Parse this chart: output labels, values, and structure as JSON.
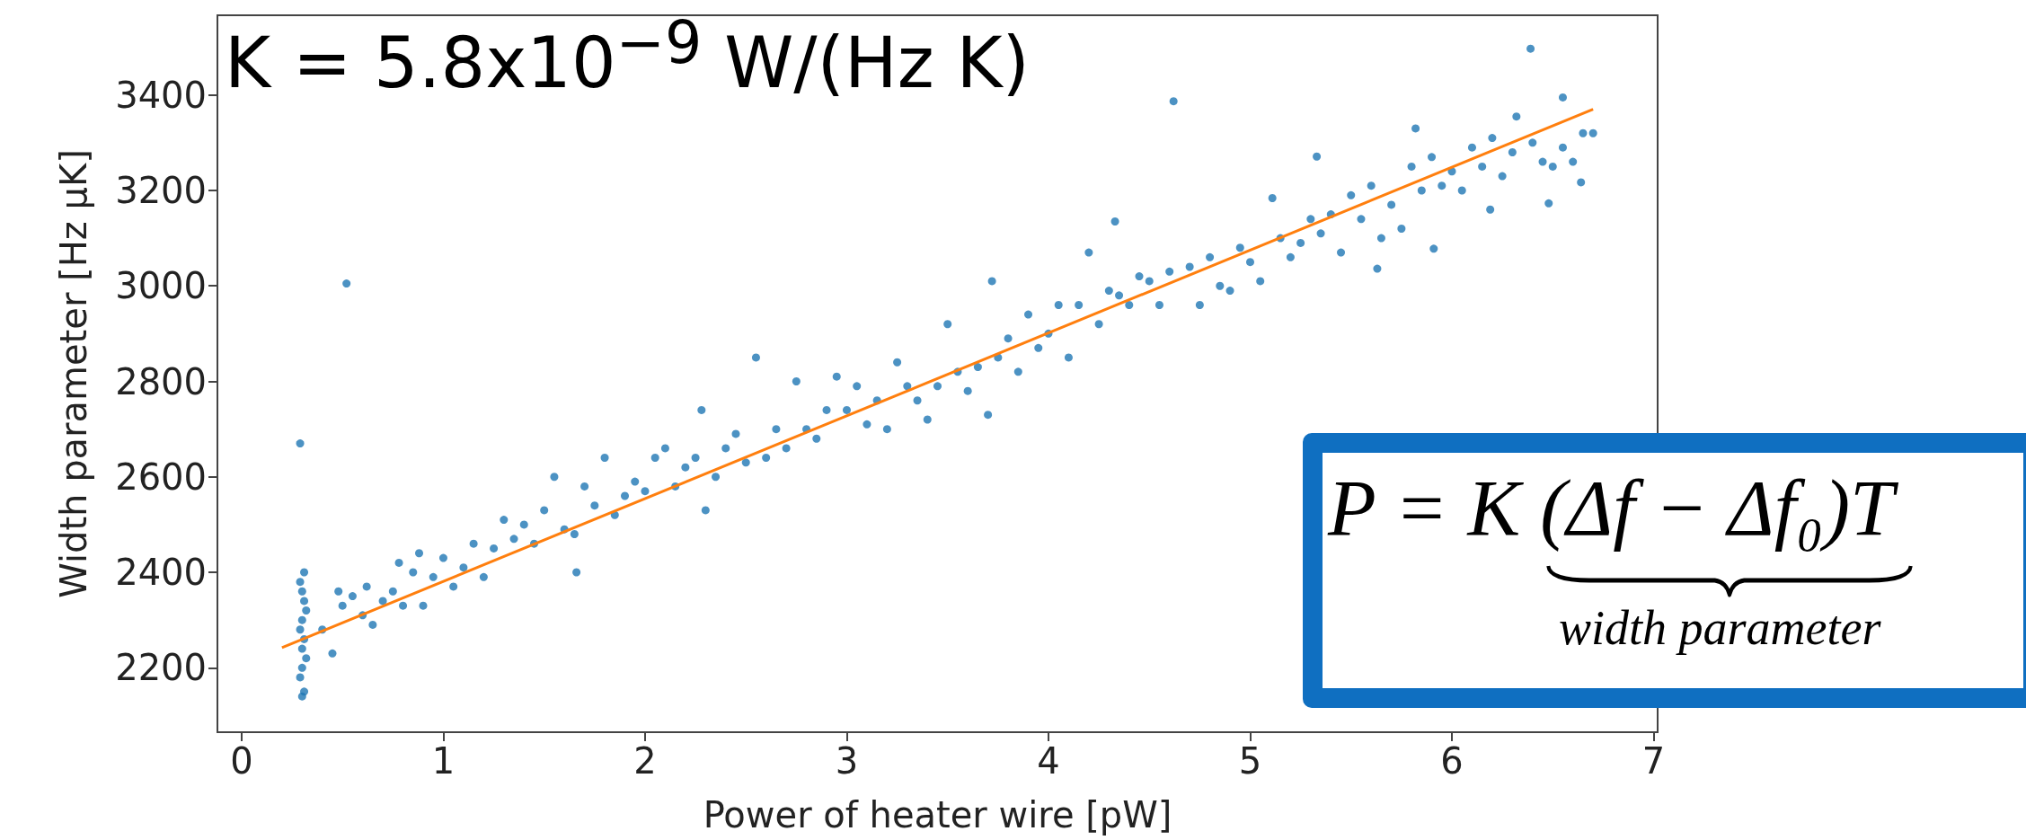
{
  "chart_data": {
    "type": "scatter",
    "xlabel": "Power of heater wire [pW]",
    "ylabel": "Width parameter [Hz μK]",
    "annotations": [
      "K = 5.8x10$^{−9}$ W/(Hz K)",
      "P = K (Δf − Δf₀)T",
      "width parameter"
    ],
    "xlim": [
      -0.12,
      7.02
    ],
    "xticks": [
      0,
      1,
      2,
      3,
      4,
      5,
      6,
      7
    ],
    "ylim": [
      2065,
      3567
    ],
    "yticks": [
      2200,
      2400,
      2600,
      2800,
      3000,
      3200,
      3400
    ],
    "grid": false,
    "marker": "circle",
    "series": [
      {
        "color": "#1f77b4",
        "x": [
          0.3,
          0.31,
          0.29,
          0.3,
          0.32,
          0.3,
          0.31,
          0.29,
          0.3,
          0.32,
          0.31,
          0.3,
          0.29,
          0.31,
          0.29,
          0.52,
          0.4,
          0.45,
          0.48,
          0.5,
          0.55,
          0.6,
          0.62,
          0.65,
          0.7,
          0.75,
          0.78,
          0.8,
          0.85,
          0.88,
          0.9,
          0.95,
          1.0,
          1.05,
          1.1,
          1.15,
          1.2,
          1.25,
          1.3,
          1.35,
          1.4,
          1.45,
          1.5,
          1.55,
          1.6,
          1.65,
          1.66,
          1.7,
          1.75,
          1.8,
          1.85,
          1.9,
          1.95,
          2.0,
          2.05,
          2.1,
          2.15,
          2.2,
          2.25,
          2.28,
          2.3,
          2.35,
          2.4,
          2.45,
          2.5,
          2.55,
          2.6,
          2.65,
          2.7,
          2.75,
          2.8,
          2.85,
          2.9,
          2.95,
          3.0,
          3.05,
          3.1,
          3.15,
          3.2,
          3.25,
          3.3,
          3.35,
          3.4,
          3.45,
          3.5,
          3.55,
          3.6,
          3.65,
          3.7,
          3.72,
          3.75,
          3.8,
          3.85,
          3.9,
          3.95,
          4.0,
          4.05,
          4.1,
          4.15,
          4.2,
          4.25,
          4.3,
          4.33,
          4.35,
          4.4,
          4.45,
          4.5,
          4.55,
          4.6,
          4.62,
          4.7,
          4.75,
          4.8,
          4.85,
          4.9,
          4.95,
          5.0,
          5.05,
          5.11,
          5.15,
          5.2,
          5.25,
          5.3,
          5.33,
          5.35,
          5.4,
          5.45,
          5.5,
          5.55,
          5.6,
          5.63,
          5.65,
          5.7,
          5.75,
          5.8,
          5.82,
          5.85,
          5.9,
          5.91,
          5.95,
          6.0,
          6.05,
          6.1,
          6.15,
          6.19,
          6.2,
          6.25,
          6.3,
          6.32,
          6.39,
          6.4,
          6.45,
          6.48,
          6.5,
          6.55,
          6.55,
          6.6,
          6.64,
          6.65,
          6.7
        ],
        "values": [
          2140,
          2150,
          2180,
          2200,
          2220,
          2240,
          2260,
          2280,
          2300,
          2320,
          2340,
          2360,
          2380,
          2400,
          2670,
          3005,
          2280,
          2230,
          2360,
          2330,
          2350,
          2310,
          2370,
          2290,
          2340,
          2360,
          2420,
          2330,
          2400,
          2440,
          2330,
          2390,
          2430,
          2370,
          2410,
          2460,
          2390,
          2450,
          2510,
          2470,
          2500,
          2460,
          2530,
          2600,
          2490,
          2480,
          2400,
          2580,
          2540,
          2640,
          2520,
          2560,
          2590,
          2570,
          2640,
          2660,
          2580,
          2620,
          2640,
          2740,
          2530,
          2600,
          2660,
          2690,
          2630,
          2850,
          2640,
          2700,
          2660,
          2800,
          2700,
          2680,
          2740,
          2810,
          2740,
          2790,
          2710,
          2760,
          2700,
          2840,
          2790,
          2760,
          2720,
          2790,
          2920,
          2820,
          2780,
          2830,
          2730,
          3010,
          2850,
          2890,
          2820,
          2940,
          2870,
          2900,
          2960,
          2850,
          2960,
          3070,
          2920,
          2990,
          3135,
          2980,
          2960,
          3020,
          3010,
          2960,
          3030,
          3387,
          3040,
          2960,
          3060,
          3000,
          2990,
          3080,
          3050,
          3010,
          3184,
          3100,
          3060,
          3090,
          3140,
          3271,
          3110,
          3150,
          3070,
          3190,
          3140,
          3210,
          3036,
          3100,
          3170,
          3120,
          3250,
          3330,
          3200,
          3270,
          3078,
          3210,
          3240,
          3200,
          3290,
          3250,
          3160,
          3310,
          3230,
          3280,
          3355,
          3497,
          3300,
          3260,
          3173,
          3250,
          3290,
          3395,
          3260,
          3217,
          3320,
          3320
        ]
      },
      {
        "type": "line",
        "color": "#ff7f0e",
        "marker": "none",
        "line_style": "solid",
        "x": [
          0.2,
          6.7
        ],
        "values": [
          2242,
          3370
        ]
      }
    ]
  }
}
